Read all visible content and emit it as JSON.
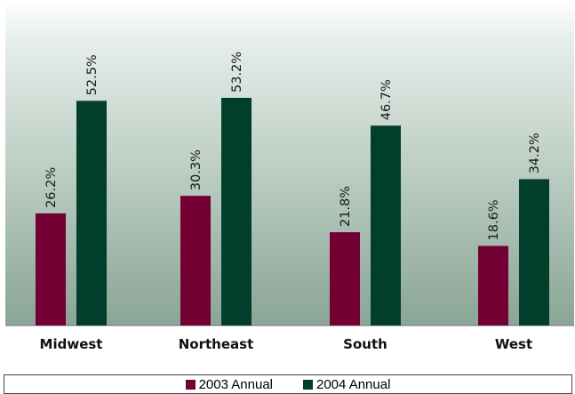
{
  "chart_data": {
    "type": "bar",
    "title": "",
    "categories": [
      "Midwest",
      "Northeast",
      "South",
      "West"
    ],
    "series": [
      {
        "name": "2003 Annual",
        "values": [
          26.2,
          30.3,
          21.8,
          18.6
        ],
        "labels": [
          "26.2%",
          "30.3%",
          "21.8%",
          "18.6%"
        ]
      },
      {
        "name": "2004 Annual",
        "values": [
          52.5,
          53.2,
          46.7,
          34.2
        ],
        "labels": [
          "52.5%",
          "53.2%",
          "46.7%",
          "34.2%"
        ]
      }
    ],
    "ylim": [
      0,
      53.2
    ],
    "grid": false,
    "legend_position": "bottom",
    "colors": {
      "2003 Annual": "#730032",
      "2004 Annual": "#013f2c"
    }
  }
}
